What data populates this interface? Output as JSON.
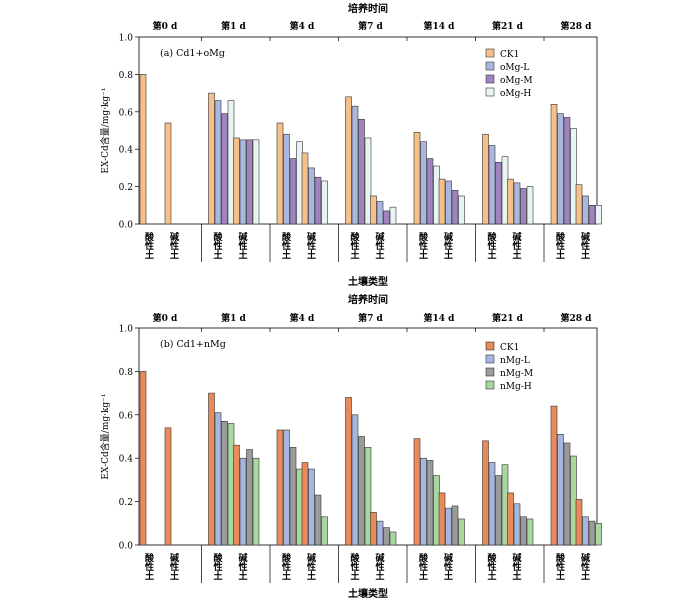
{
  "figure": {
    "top_title": "培养时间",
    "day_labels": [
      "第0 d",
      "第1 d",
      "第4 d",
      "第7 d",
      "第14 d",
      "第21 d",
      "第28 d"
    ],
    "soil_labels": [
      "酸性土",
      "碱性土"
    ],
    "xlabel": "土壤类型",
    "ylabel": "EX-Cd含量/mg·kg⁻¹"
  },
  "chart_data": [
    {
      "type": "bar",
      "panel_label": "(a) Cd1+oMg",
      "title": "培养时间",
      "xlabel": "土壤类型",
      "ylabel": "EX-Cd含量/mg·kg⁻¹",
      "ylim": [
        0,
        1.0
      ],
      "yticks": [
        0,
        0.2,
        0.4,
        0.6,
        0.8,
        1.0
      ],
      "grid": false,
      "legend": "top-right",
      "groups": [
        "第0 d",
        "第1 d",
        "第4 d",
        "第7 d",
        "第14 d",
        "第21 d",
        "第28 d"
      ],
      "subgroups": [
        "酸性土",
        "碱性土"
      ],
      "series": [
        {
          "name": "CK1",
          "color": "#f7c08a",
          "values": [
            [
              0.8,
              0.54
            ],
            [
              0.7,
              0.46
            ],
            [
              0.54,
              0.38
            ],
            [
              0.68,
              0.15
            ],
            [
              0.49,
              0.24
            ],
            [
              0.48,
              0.24
            ],
            [
              0.64,
              0.21
            ]
          ]
        },
        {
          "name": "oMg-L",
          "color": "#aab8e0",
          "values": [
            [
              null,
              null
            ],
            [
              0.66,
              0.45
            ],
            [
              0.48,
              0.3
            ],
            [
              0.63,
              0.12
            ],
            [
              0.44,
              0.23
            ],
            [
              0.42,
              0.22
            ],
            [
              0.59,
              0.15
            ]
          ]
        },
        {
          "name": "oMg-M",
          "color": "#9f84c0",
          "values": [
            [
              null,
              null
            ],
            [
              0.59,
              0.45
            ],
            [
              0.35,
              0.25
            ],
            [
              0.56,
              0.07
            ],
            [
              0.35,
              0.18
            ],
            [
              0.33,
              0.19
            ],
            [
              0.57,
              0.1
            ]
          ]
        },
        {
          "name": "oMg-H",
          "color": "#e8f4f4",
          "values": [
            [
              null,
              null
            ],
            [
              0.66,
              0.45
            ],
            [
              0.44,
              0.23
            ],
            [
              0.46,
              0.09
            ],
            [
              0.31,
              0.15
            ],
            [
              0.36,
              0.2
            ],
            [
              0.51,
              0.1
            ]
          ]
        }
      ]
    },
    {
      "type": "bar",
      "panel_label": "(b) Cd1+nMg",
      "title": "培养时间",
      "xlabel": "土壤类型",
      "ylabel": "EX-Cd含量/mg·kg⁻¹",
      "ylim": [
        0,
        1.0
      ],
      "yticks": [
        0,
        0.2,
        0.4,
        0.6,
        0.8,
        1.0
      ],
      "grid": false,
      "legend": "top-right",
      "groups": [
        "第0 d",
        "第1 d",
        "第4 d",
        "第7 d",
        "第14 d",
        "第21 d",
        "第28 d"
      ],
      "subgroups": [
        "酸性土",
        "碱性土"
      ],
      "series": [
        {
          "name": "CK1",
          "color": "#e98a5a",
          "values": [
            [
              0.8,
              0.54
            ],
            [
              0.7,
              0.46
            ],
            [
              0.53,
              0.38
            ],
            [
              0.68,
              0.15
            ],
            [
              0.49,
              0.24
            ],
            [
              0.48,
              0.24
            ],
            [
              0.64,
              0.21
            ]
          ]
        },
        {
          "name": "nMg-L",
          "color": "#a5b6e0",
          "values": [
            [
              null,
              null
            ],
            [
              0.61,
              0.4
            ],
            [
              0.53,
              0.35
            ],
            [
              0.6,
              0.11
            ],
            [
              0.4,
              0.17
            ],
            [
              0.38,
              0.19
            ],
            [
              0.51,
              0.13
            ]
          ]
        },
        {
          "name": "nMg-M",
          "color": "#9b9b9b",
          "values": [
            [
              null,
              null
            ],
            [
              0.57,
              0.44
            ],
            [
              0.45,
              0.23
            ],
            [
              0.5,
              0.08
            ],
            [
              0.39,
              0.18
            ],
            [
              0.32,
              0.13
            ],
            [
              0.47,
              0.11
            ]
          ]
        },
        {
          "name": "nMg-H",
          "color": "#a8d8a0",
          "values": [
            [
              null,
              null
            ],
            [
              0.56,
              0.4
            ],
            [
              0.35,
              0.13
            ],
            [
              0.45,
              0.06
            ],
            [
              0.32,
              0.12
            ],
            [
              0.37,
              0.12
            ],
            [
              0.41,
              0.1
            ]
          ]
        }
      ]
    }
  ]
}
